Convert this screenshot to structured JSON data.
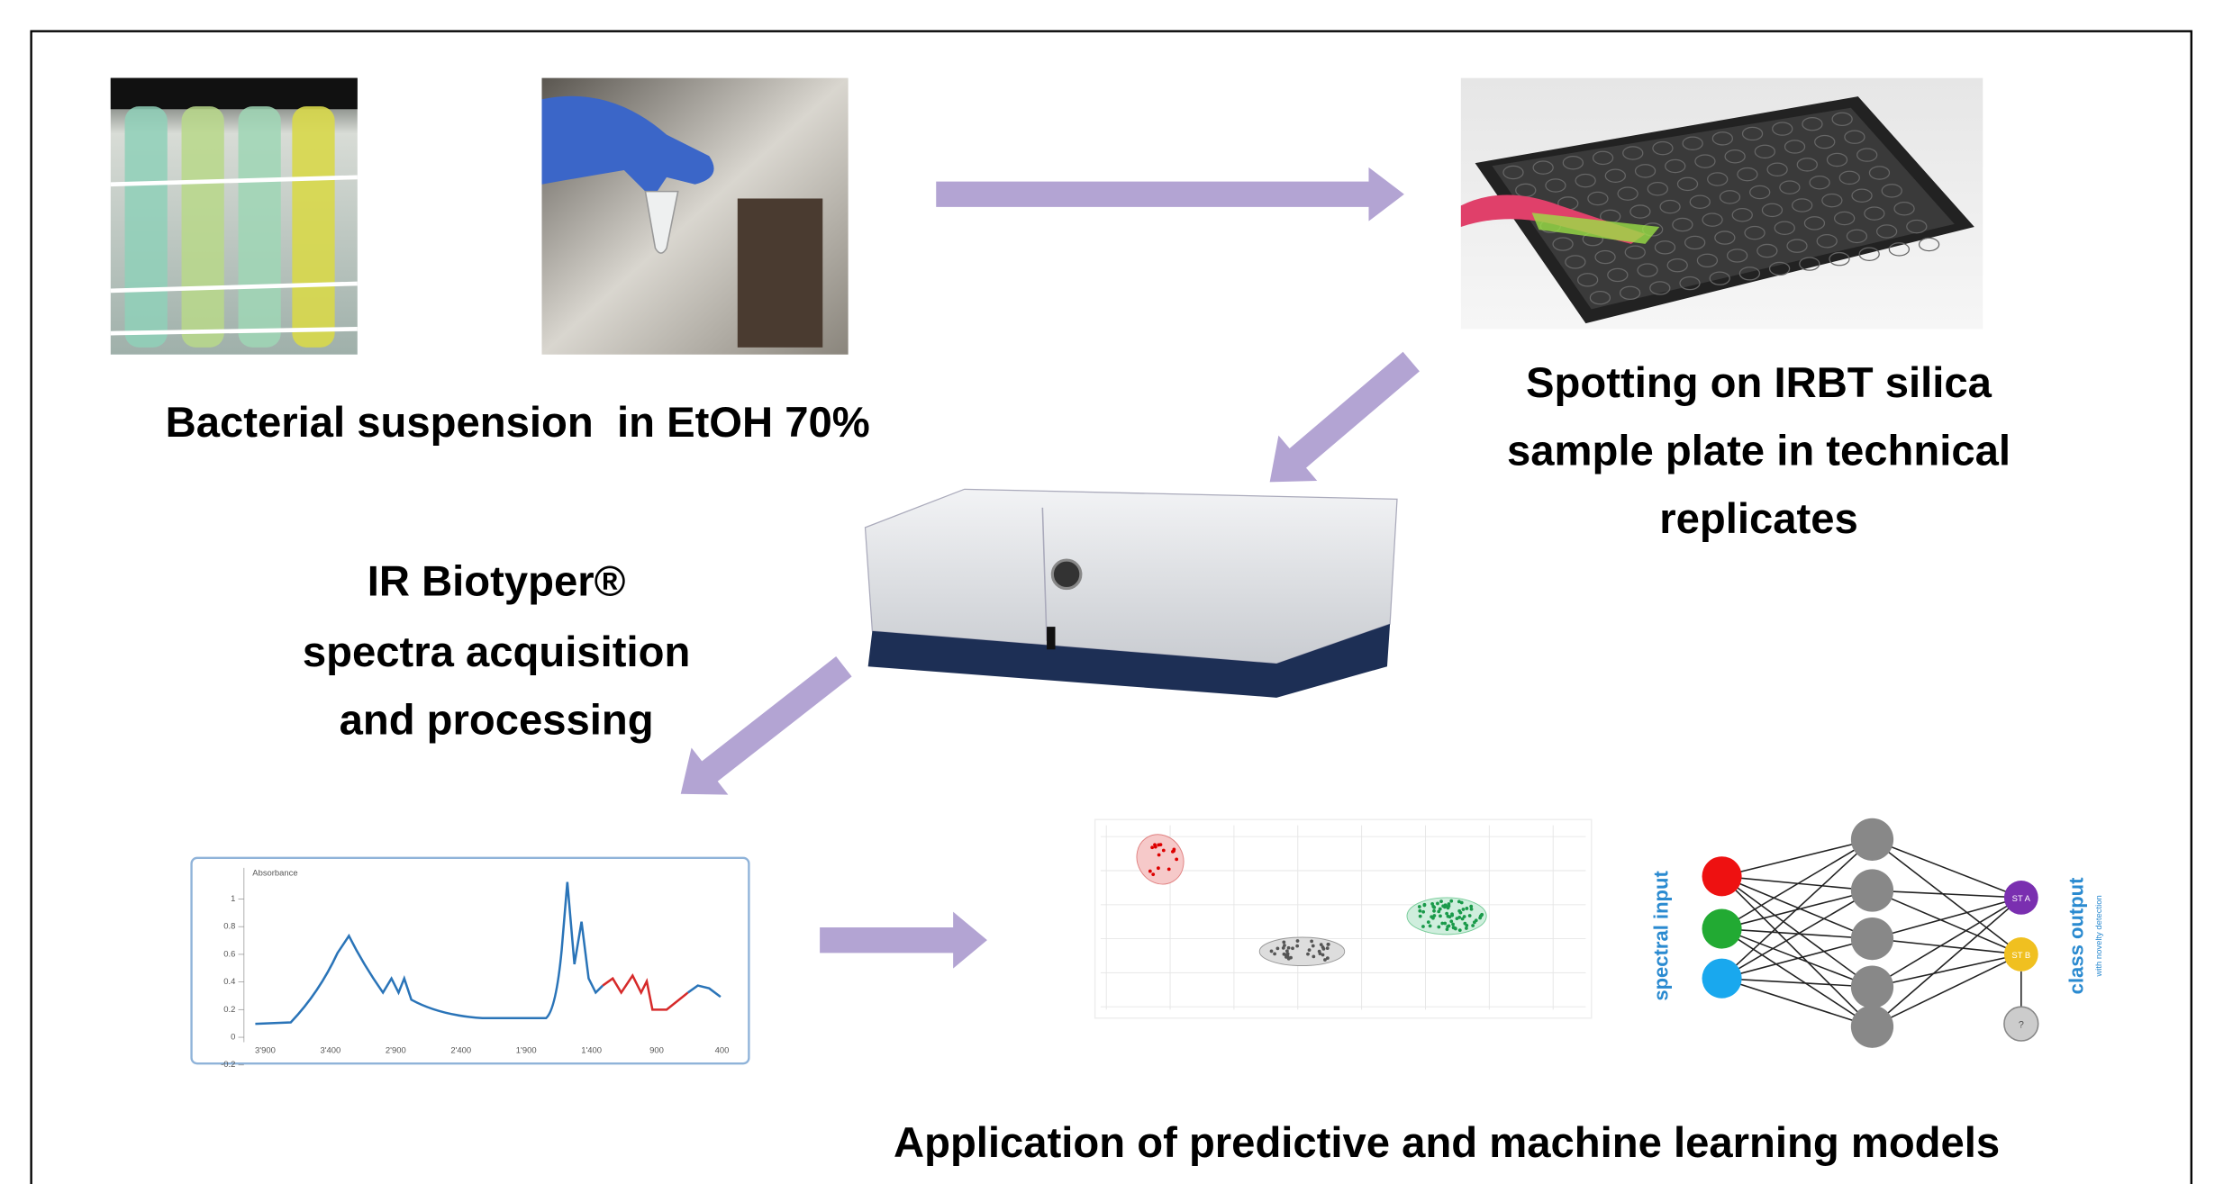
{
  "steps": {
    "suspension": "Bacterial suspension  in EtOH 70%",
    "spotting": [
      "Spotting on IRBT silica",
      "sample plate in technical",
      "replicates"
    ],
    "acquisition": [
      "IR Biotyper®",
      "spectra acquisition",
      "and processing"
    ],
    "application": "Application of predictive and machine learning models"
  },
  "spectrum": {
    "y_label": "Absorbance",
    "yticks": [
      "1",
      "0.8",
      "0.6",
      "0.4",
      "0.2",
      "0",
      "-0.2"
    ],
    "xticks": [
      "3'900",
      "3'400",
      "2'900",
      "2'400",
      "1'900",
      "1'400",
      "900",
      "400"
    ]
  },
  "network": {
    "input_label": "spectral input",
    "output_label": "class output",
    "output_note": "with novelty detection",
    "classes": [
      "ST A",
      "ST B",
      "?"
    ]
  }
}
